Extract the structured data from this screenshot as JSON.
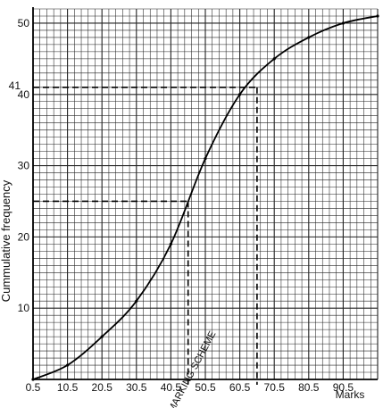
{
  "chart_data": {
    "type": "line",
    "title": "",
    "xlabel": "Marks",
    "ylabel": "Cummulative frequency",
    "xlim": [
      0.5,
      100.5
    ],
    "ylim": [
      0,
      52
    ],
    "grid": true,
    "x_ticks": [
      "0.5",
      "10.5",
      "20.5",
      "30.5",
      "40.5",
      "50.5",
      "60.5",
      "70.5",
      "80.5",
      "90.5"
    ],
    "y_ticks": [
      "10",
      "20",
      "30",
      "40",
      "50"
    ],
    "series": [
      {
        "x": [
          0.5,
          10.5,
          20.5,
          30.5,
          40.5,
          50.5,
          60.5,
          70.5,
          80.5,
          90.5,
          100.5
        ],
        "values": [
          0,
          2,
          6,
          11,
          19,
          31,
          40,
          45,
          48,
          50,
          51
        ]
      }
    ],
    "guide_lines": [
      {
        "y": 41,
        "x": 65.5
      },
      {
        "y": 25,
        "x": 45.5
      }
    ],
    "annotations": [
      "MARKING SCHEME"
    ],
    "y_label_41": "41"
  }
}
